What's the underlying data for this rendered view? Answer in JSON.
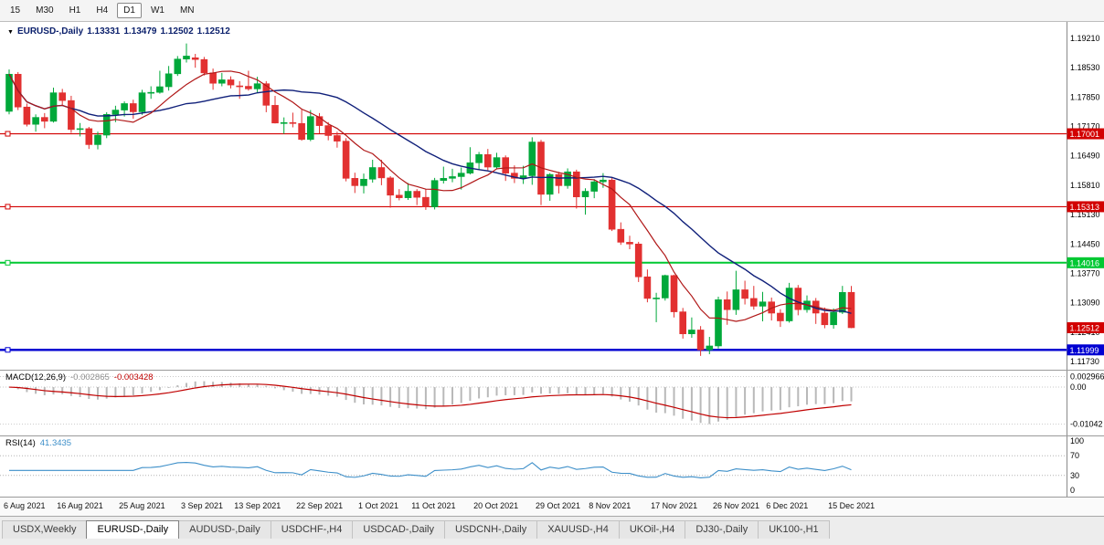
{
  "toolbar": {
    "periods": [
      {
        "label": "15",
        "active": false
      },
      {
        "label": "M30",
        "active": false
      },
      {
        "label": "H1",
        "active": false
      },
      {
        "label": "H4",
        "active": false
      },
      {
        "label": "D1",
        "active": true
      },
      {
        "label": "W1",
        "active": false
      },
      {
        "label": "MN",
        "active": false
      }
    ]
  },
  "chart_data": {
    "type": "candlestick",
    "title": "EURUSD-,Daily",
    "ohlc_display": {
      "open": "1.13331",
      "high": "1.13479",
      "low": "1.12502",
      "close": "1.12512"
    },
    "colors": {
      "up": "#00a83a",
      "down": "#e23030",
      "axis_text": "#000000"
    },
    "y_axis": {
      "ticks": [
        "1.19210",
        "1.18530",
        "1.17850",
        "1.17170",
        "1.16490",
        "1.15810",
        "1.15130",
        "1.14450",
        "1.13770",
        "1.13090",
        "1.12410",
        "1.11730"
      ],
      "top_price": 1.1921,
      "bottom_price": 1.1173
    },
    "h_lines": [
      {
        "price": 1.17001,
        "label": "1.17001",
        "color": "#d20000",
        "width": 1.2
      },
      {
        "price": 1.15313,
        "label": "1.15313",
        "color": "#d20000",
        "width": 1.2
      },
      {
        "price": 1.14016,
        "label": "1.14016",
        "color": "#00c832",
        "width": 2
      },
      {
        "price": 1.11999,
        "label": "1.11999",
        "color": "#0000d2",
        "width": 2.5
      }
    ],
    "current_price": {
      "label": "1.12512",
      "price": 1.12512,
      "color": "#d20000"
    },
    "moving_averages": [
      {
        "period": 8,
        "color": "#b01717"
      },
      {
        "period": 21,
        "color": "#10207a"
      }
    ],
    "x_labels": [
      {
        "i": 0,
        "label": "6 Aug 2021"
      },
      {
        "i": 6,
        "label": "16 Aug 2021"
      },
      {
        "i": 13,
        "label": "25 Aug 2021"
      },
      {
        "i": 20,
        "label": "3 Sep 2021"
      },
      {
        "i": 26,
        "label": "13 Sep 2021"
      },
      {
        "i": 33,
        "label": "22 Sep 2021"
      },
      {
        "i": 40,
        "label": "1 Oct 2021"
      },
      {
        "i": 46,
        "label": "11 Oct 2021"
      },
      {
        "i": 53,
        "label": "20 Oct 2021"
      },
      {
        "i": 60,
        "label": "29 Oct 2021"
      },
      {
        "i": 66,
        "label": "8 Nov 2021"
      },
      {
        "i": 73,
        "label": "17 Nov 2021"
      },
      {
        "i": 80,
        "label": "26 Nov 2021"
      },
      {
        "i": 86,
        "label": "6 Dec 2021"
      },
      {
        "i": 93,
        "label": "15 Dec 2021"
      }
    ],
    "candles": [
      [
        1.1752,
        1.1849,
        1.1745,
        1.1838
      ],
      [
        1.1838,
        1.1843,
        1.1755,
        1.1762
      ],
      [
        1.1762,
        1.177,
        1.1717,
        1.1722
      ],
      [
        1.1722,
        1.1745,
        1.1705,
        1.1738
      ],
      [
        1.1738,
        1.1748,
        1.1713,
        1.1729
      ],
      [
        1.1729,
        1.1807,
        1.1726,
        1.1795
      ],
      [
        1.1795,
        1.1804,
        1.1766,
        1.1777
      ],
      [
        1.1777,
        1.1788,
        1.1702,
        1.171
      ],
      [
        1.171,
        1.1725,
        1.1694,
        1.1712
      ],
      [
        1.1712,
        1.1716,
        1.1665,
        1.1675
      ],
      [
        1.1675,
        1.1705,
        1.1664,
        1.1697
      ],
      [
        1.1697,
        1.175,
        1.169,
        1.1745
      ],
      [
        1.1745,
        1.1765,
        1.1727,
        1.1755
      ],
      [
        1.1755,
        1.1775,
        1.174,
        1.177
      ],
      [
        1.177,
        1.1779,
        1.1735,
        1.1751
      ],
      [
        1.1751,
        1.1802,
        1.1744,
        1.1795
      ],
      [
        1.1795,
        1.181,
        1.1781,
        1.1796
      ],
      [
        1.1796,
        1.1846,
        1.1793,
        1.1809
      ],
      [
        1.1809,
        1.1857,
        1.18,
        1.1839
      ],
      [
        1.1839,
        1.188,
        1.1834,
        1.1873
      ],
      [
        1.1873,
        1.1909,
        1.1865,
        1.188
      ],
      [
        1.1876,
        1.1885,
        1.1853,
        1.1872
      ],
      [
        1.1872,
        1.1878,
        1.1835,
        1.1841
      ],
      [
        1.1841,
        1.1851,
        1.1802,
        1.1817
      ],
      [
        1.1817,
        1.1841,
        1.181,
        1.1825
      ],
      [
        1.1825,
        1.1833,
        1.1805,
        1.1813
      ],
      [
        1.1811,
        1.1822,
        1.1781,
        1.181
      ],
      [
        1.181,
        1.1846,
        1.18,
        1.1804
      ],
      [
        1.1804,
        1.1832,
        1.1795,
        1.1816
      ],
      [
        1.1816,
        1.1822,
        1.175,
        1.1766
      ],
      [
        1.1766,
        1.1788,
        1.1724,
        1.1725
      ],
      [
        1.1725,
        1.1738,
        1.17,
        1.1726
      ],
      [
        1.1726,
        1.1749,
        1.1715,
        1.1724
      ],
      [
        1.1724,
        1.1756,
        1.1684,
        1.1687
      ],
      [
        1.1687,
        1.1755,
        1.1683,
        1.174
      ],
      [
        1.174,
        1.1748,
        1.1701,
        1.1719
      ],
      [
        1.1719,
        1.1727,
        1.1685,
        1.1696
      ],
      [
        1.1696,
        1.1705,
        1.1668,
        1.1683
      ],
      [
        1.1683,
        1.169,
        1.159,
        1.1597
      ],
      [
        1.1597,
        1.161,
        1.1563,
        1.158
      ],
      [
        1.158,
        1.1608,
        1.1562,
        1.1595
      ],
      [
        1.1595,
        1.164,
        1.1587,
        1.1622
      ],
      [
        1.1622,
        1.164,
        1.1581,
        1.1598
      ],
      [
        1.1598,
        1.1602,
        1.1529,
        1.1558
      ],
      [
        1.1558,
        1.1572,
        1.1546,
        1.1552
      ],
      [
        1.1552,
        1.1586,
        1.1547,
        1.1567
      ],
      [
        1.1567,
        1.1572,
        1.1535,
        1.1553
      ],
      [
        1.1553,
        1.1572,
        1.1524,
        1.1531
      ],
      [
        1.1531,
        1.1598,
        1.1525,
        1.1592
      ],
      [
        1.1592,
        1.1624,
        1.1585,
        1.1597
      ],
      [
        1.1597,
        1.1619,
        1.1588,
        1.1601
      ],
      [
        1.1601,
        1.1622,
        1.1571,
        1.1609
      ],
      [
        1.1609,
        1.1669,
        1.1606,
        1.1633
      ],
      [
        1.1633,
        1.1658,
        1.1617,
        1.1652
      ],
      [
        1.1652,
        1.1665,
        1.1616,
        1.1623
      ],
      [
        1.1623,
        1.1656,
        1.162,
        1.1645
      ],
      [
        1.1645,
        1.165,
        1.1591,
        1.1609
      ],
      [
        1.1609,
        1.1627,
        1.1586,
        1.1597
      ],
      [
        1.1597,
        1.1626,
        1.1584,
        1.1603
      ],
      [
        1.1603,
        1.1692,
        1.1582,
        1.1681
      ],
      [
        1.1681,
        1.1686,
        1.1535,
        1.156
      ],
      [
        1.156,
        1.1609,
        1.1545,
        1.1606
      ],
      [
        1.1606,
        1.1612,
        1.1562,
        1.158
      ],
      [
        1.158,
        1.162,
        1.1573,
        1.1612
      ],
      [
        1.1612,
        1.1617,
        1.1527,
        1.1554
      ],
      [
        1.1554,
        1.1574,
        1.1513,
        1.1567
      ],
      [
        1.1567,
        1.1595,
        1.1551,
        1.1589
      ],
      [
        1.1589,
        1.1609,
        1.1575,
        1.1593
      ],
      [
        1.1593,
        1.1598,
        1.1475,
        1.1479
      ],
      [
        1.1479,
        1.1495,
        1.1443,
        1.1449
      ],
      [
        1.1449,
        1.1464,
        1.1433,
        1.1445
      ],
      [
        1.1445,
        1.145,
        1.1357,
        1.1369
      ],
      [
        1.1369,
        1.1386,
        1.131,
        1.1319
      ],
      [
        1.1319,
        1.1332,
        1.1264,
        1.132
      ],
      [
        1.132,
        1.1374,
        1.1314,
        1.1372
      ],
      [
        1.1372,
        1.1374,
        1.1275,
        1.1288
      ],
      [
        1.1288,
        1.1297,
        1.1226,
        1.1237
      ],
      [
        1.1237,
        1.1275,
        1.1228,
        1.1246
      ],
      [
        1.1246,
        1.1255,
        1.1186,
        1.12
      ],
      [
        1.12,
        1.123,
        1.119,
        1.1209
      ],
      [
        1.1209,
        1.1323,
        1.1203,
        1.1316
      ],
      [
        1.1316,
        1.1335,
        1.1258,
        1.1293
      ],
      [
        1.1293,
        1.1383,
        1.1281,
        1.1339
      ],
      [
        1.1339,
        1.136,
        1.1305,
        1.1319
      ],
      [
        1.1319,
        1.1348,
        1.1293,
        1.1301
      ],
      [
        1.1301,
        1.1334,
        1.1266,
        1.1311
      ],
      [
        1.1311,
        1.1321,
        1.1268,
        1.1285
      ],
      [
        1.1285,
        1.1294,
        1.1253,
        1.1267
      ],
      [
        1.1267,
        1.1355,
        1.1263,
        1.1343
      ],
      [
        1.1343,
        1.135,
        1.128,
        1.1293
      ],
      [
        1.1293,
        1.1326,
        1.1286,
        1.1313
      ],
      [
        1.1313,
        1.132,
        1.126,
        1.1285
      ],
      [
        1.1285,
        1.1298,
        1.125,
        1.1258
      ],
      [
        1.1258,
        1.1296,
        1.1249,
        1.1287
      ],
      [
        1.1287,
        1.1348,
        1.1283,
        1.1333
      ],
      [
        1.13331,
        1.13479,
        1.12502,
        1.12512
      ]
    ],
    "macd": {
      "label": "MACD(12,26,9)",
      "value_main": "-0.002865",
      "value_signal": "-0.003428",
      "params": [
        12,
        26,
        9
      ],
      "colors": {
        "histogram": "#b9b9b9",
        "signal": "#c00000"
      },
      "axis_labels": [
        {
          "v": 0.002966,
          "t": "0.002966"
        },
        {
          "v": 0,
          "t": "0.00"
        },
        {
          "v": -0.01042,
          "t": "-0.01042"
        }
      ],
      "trough": -0.01042
    },
    "rsi": {
      "label": "RSI(14)",
      "value": "41.3435",
      "period": 14,
      "color": "#3d8fc9",
      "levels": [
        100,
        70,
        30,
        0
      ],
      "dotted_levels": [
        70,
        30
      ]
    }
  },
  "tabs": [
    {
      "label": "USDX,Weekly",
      "active": false
    },
    {
      "label": "EURUSD-,Daily",
      "active": true
    },
    {
      "label": "AUDUSD-,Daily",
      "active": false
    },
    {
      "label": "USDCHF-,H4",
      "active": false
    },
    {
      "label": "USDCAD-,Daily",
      "active": false
    },
    {
      "label": "USDCNH-,Daily",
      "active": false
    },
    {
      "label": "XAUUSD-,H4",
      "active": false
    },
    {
      "label": "UKOil-,H4",
      "active": false
    },
    {
      "label": "DJ30-,Daily",
      "active": false
    },
    {
      "label": "UK100-,H1",
      "active": false
    }
  ]
}
